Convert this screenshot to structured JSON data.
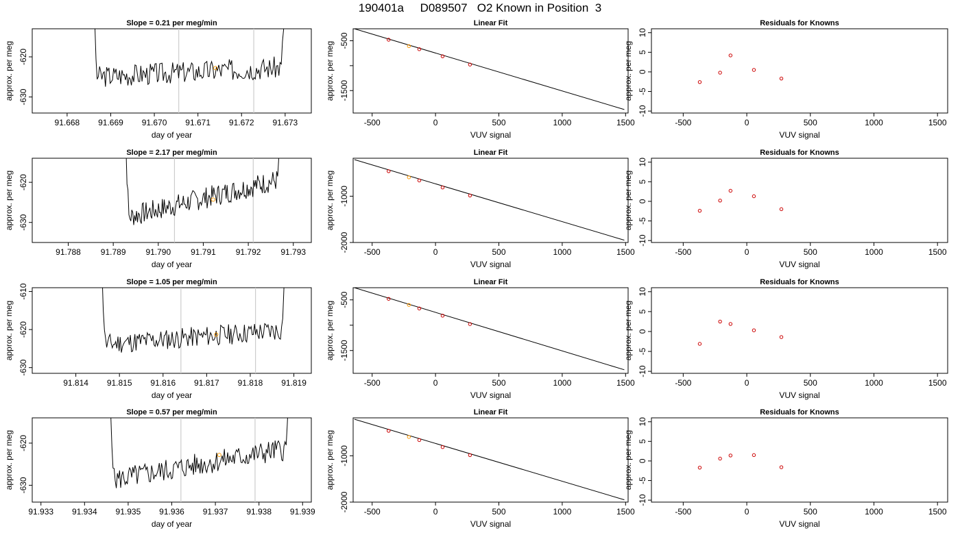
{
  "figure": {
    "title": "190401a     D089507   O2 Known in Position  3",
    "colors": {
      "line": "#000000",
      "point": "#cc0000",
      "highlight": "#ff9900",
      "marker": "#cccccc"
    }
  },
  "chart_data": [
    {
      "type": "line",
      "row": 1,
      "col": 1,
      "title": "Slope =  0.21  per meg/min",
      "xlabel": "day of year",
      "ylabel": "approx. per meg",
      "xlim": [
        91.6672,
        91.6736
      ],
      "ylim": [
        -634,
        -613
      ],
      "xticks": [
        "91.668",
        "91.669",
        "91.670",
        "91.671",
        "91.672",
        "91.673"
      ],
      "yticks": [
        "-620",
        "-630"
      ],
      "vlines": [
        91.67056,
        91.67228
      ],
      "trace_start": 91.6685,
      "trace_end": 91.6731,
      "trace_base": -625,
      "trace_trend": 2.5,
      "trace_seed": 3,
      "highlight": [
        91.6714,
        -622.8
      ]
    },
    {
      "type": "scatter",
      "row": 1,
      "col": 2,
      "title": "Linear Fit",
      "xlabel": "VUV signal",
      "ylabel": "approx. per meg",
      "xlim": [
        -650,
        1520
      ],
      "ylim": [
        -1950,
        -260
      ],
      "xticks": [
        "-500",
        "0",
        "500",
        "1000",
        "1500"
      ],
      "yticks": [
        "-500",
        "-1000",
        "-1500"
      ],
      "ytick_labels": [
        "-500",
        "",
        "-1500"
      ],
      "fit_line": [
        [
          -640,
          -260
        ],
        [
          1490,
          -1880
        ]
      ],
      "points": [
        [
          -370,
          -480
        ],
        [
          -210,
          -608
        ],
        [
          -128,
          -670
        ],
        [
          56,
          -812
        ],
        [
          272,
          -978
        ]
      ],
      "highlight_index": 1
    },
    {
      "type": "scatter",
      "row": 1,
      "col": 3,
      "title": "Residuals for Knowns",
      "xlabel": "VUV signal",
      "ylabel": "approx. per meg",
      "xlim": [
        -750,
        1580
      ],
      "ylim": [
        -10.5,
        11
      ],
      "xticks": [
        "-500",
        "0",
        "500",
        "1000",
        "1500"
      ],
      "yticks": [
        "10",
        "5",
        "0",
        "-5",
        "-10"
      ],
      "points": [
        [
          -370,
          -2.6
        ],
        [
          -210,
          -0.2
        ],
        [
          -128,
          4.2
        ],
        [
          56,
          0.5
        ],
        [
          272,
          -1.7
        ]
      ]
    },
    {
      "type": "line",
      "row": 2,
      "col": 1,
      "title": "Slope =  2.17  per meg/min",
      "xlabel": "day of year",
      "ylabel": "approx. per meg",
      "xlim": [
        91.7872,
        91.7934
      ],
      "ylim": [
        -635,
        -614
      ],
      "xticks": [
        "91.788",
        "91.789",
        "91.790",
        "91.791",
        "91.792",
        "91.793"
      ],
      "yticks": [
        "-620",
        "-630"
      ],
      "vlines": [
        91.79036,
        91.79211
      ],
      "trace_start": 91.7892,
      "trace_end": 91.7928,
      "trace_base": -629,
      "trace_trend": 10,
      "trace_seed": 7,
      "highlight": [
        91.79122,
        -624.3
      ]
    },
    {
      "type": "scatter",
      "row": 2,
      "col": 2,
      "title": "Linear Fit",
      "xlabel": "VUV signal",
      "ylabel": "approx. per meg",
      "xlim": [
        -650,
        1520
      ],
      "ylim": [
        -2000,
        -180
      ],
      "xticks": [
        "-500",
        "0",
        "500",
        "1000",
        "1500"
      ],
      "yticks": [
        "-1000",
        "-2000"
      ],
      "fit_line": [
        [
          -640,
          -210
        ],
        [
          1490,
          -1950
        ]
      ],
      "points": [
        [
          -370,
          -460
        ],
        [
          -210,
          -592
        ],
        [
          -128,
          -660
        ],
        [
          56,
          -812
        ],
        [
          272,
          -985
        ]
      ],
      "highlight_index": 1
    },
    {
      "type": "scatter",
      "row": 2,
      "col": 3,
      "title": "Residuals for Knowns",
      "xlabel": "VUV signal",
      "ylabel": "approx. per meg",
      "xlim": [
        -750,
        1580
      ],
      "ylim": [
        -10.5,
        11
      ],
      "xticks": [
        "-500",
        "0",
        "500",
        "1000",
        "1500"
      ],
      "yticks": [
        "10",
        "5",
        "0",
        "-5",
        "-10"
      ],
      "points": [
        [
          -370,
          -2.4
        ],
        [
          -210,
          0.2
        ],
        [
          -128,
          2.7
        ],
        [
          56,
          1.3
        ],
        [
          272,
          -2.0
        ]
      ]
    },
    {
      "type": "line",
      "row": 3,
      "col": 1,
      "title": "Slope =  1.05  per meg/min",
      "xlabel": "day of year",
      "ylabel": "approx. per meg",
      "xlim": [
        91.813,
        91.8194
      ],
      "ylim": [
        -631.5,
        -609
      ],
      "xticks": [
        "91.814",
        "91.815",
        "91.816",
        "91.817",
        "91.818",
        "91.819"
      ],
      "yticks": [
        "-610",
        "-620",
        "-630"
      ],
      "vlines": [
        91.81641,
        91.81812
      ],
      "trace_start": 91.8145,
      "trace_end": 91.8189,
      "trace_base": -624,
      "trace_trend": 4,
      "trace_seed": 11,
      "highlight": [
        91.81722,
        -621.3
      ]
    },
    {
      "type": "scatter",
      "row": 3,
      "col": 2,
      "title": "Linear Fit",
      "xlabel": "VUV signal",
      "ylabel": "approx. per meg",
      "xlim": [
        -650,
        1520
      ],
      "ylim": [
        -1950,
        -260
      ],
      "xticks": [
        "-500",
        "0",
        "500",
        "1000",
        "1500"
      ],
      "yticks": [
        "-500",
        "-1000",
        "-1500"
      ],
      "ytick_labels": [
        "-500",
        "",
        "-1500"
      ],
      "fit_line": [
        [
          -640,
          -260
        ],
        [
          1490,
          -1880
        ]
      ],
      "points": [
        [
          -370,
          -480
        ],
        [
          -210,
          -600
        ],
        [
          -128,
          -670
        ],
        [
          56,
          -812
        ],
        [
          272,
          -978
        ]
      ],
      "highlight_index": 1
    },
    {
      "type": "scatter",
      "row": 3,
      "col": 3,
      "title": "Residuals for Knowns",
      "xlabel": "VUV signal",
      "ylabel": "approx. per meg",
      "xlim": [
        -750,
        1580
      ],
      "ylim": [
        -10.5,
        11
      ],
      "xticks": [
        "-500",
        "0",
        "500",
        "1000",
        "1500"
      ],
      "yticks": [
        "10",
        "5",
        "0",
        "-5",
        "-10"
      ],
      "points": [
        [
          -370,
          -3.1
        ],
        [
          -210,
          2.5
        ],
        [
          -128,
          1.9
        ],
        [
          56,
          0.3
        ],
        [
          272,
          -1.4
        ]
      ]
    },
    {
      "type": "line",
      "row": 4,
      "col": 1,
      "title": "Slope =  0.57  per meg/min",
      "xlabel": "day of year",
      "ylabel": "approx. per meg",
      "xlim": [
        91.9328,
        91.9392
      ],
      "ylim": [
        -634,
        -614
      ],
      "xticks": [
        "91.933",
        "91.934",
        "91.935",
        "91.936",
        "91.937",
        "91.938",
        "91.939"
      ],
      "yticks": [
        "-620",
        "-630"
      ],
      "vlines": [
        91.93621,
        91.93791
      ],
      "trace_start": 91.9345,
      "trace_end": 91.9388,
      "trace_base": -629,
      "trace_trend": 8,
      "trace_seed": 5,
      "highlight": [
        91.93709,
        -622.8
      ]
    },
    {
      "type": "scatter",
      "row": 4,
      "col": 2,
      "title": "Linear Fit",
      "xlabel": "VUV signal",
      "ylabel": "approx. per meg",
      "xlim": [
        -650,
        1520
      ],
      "ylim": [
        -2000,
        -180
      ],
      "xticks": [
        "-500",
        "0",
        "500",
        "1000",
        "1500"
      ],
      "yticks": [
        "-1000",
        "-2000"
      ],
      "fit_line": [
        [
          -640,
          -210
        ],
        [
          1490,
          -1950
        ]
      ],
      "points": [
        [
          -370,
          -460
        ],
        [
          -210,
          -592
        ],
        [
          -128,
          -660
        ],
        [
          56,
          -812
        ],
        [
          272,
          -985
        ]
      ],
      "highlight_index": 1
    },
    {
      "type": "scatter",
      "row": 4,
      "col": 3,
      "title": "Residuals for Knowns",
      "xlabel": "VUV signal",
      "ylabel": "approx. per meg",
      "xlim": [
        -750,
        1580
      ],
      "ylim": [
        -10.5,
        11
      ],
      "xticks": [
        "-500",
        "0",
        "500",
        "1000",
        "1500"
      ],
      "yticks": [
        "10",
        "5",
        "0",
        "-5",
        "-10"
      ],
      "points": [
        [
          -370,
          -1.7
        ],
        [
          -210,
          0.6
        ],
        [
          -128,
          1.4
        ],
        [
          56,
          1.5
        ],
        [
          272,
          -1.6
        ]
      ]
    }
  ]
}
